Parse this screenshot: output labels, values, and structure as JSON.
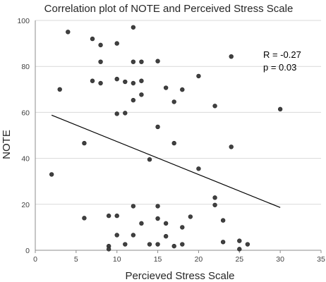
{
  "chart_data": {
    "type": "scatter",
    "title": "Correlation plot of NOTE and Perceived Stress Scale",
    "xlabel": "Percieved Stress Scale",
    "ylabel": "NOTE",
    "xlim": [
      0,
      35
    ],
    "ylim": [
      0,
      100
    ],
    "xticks": [
      "0",
      "5",
      "10",
      "15",
      "20",
      "25",
      "30",
      "35"
    ],
    "yticks": [
      "0",
      "20",
      "40",
      "60",
      "80",
      "100"
    ],
    "grid": "horizontal",
    "annotations": [
      "R = -0.27",
      "p = 0.03"
    ],
    "point_color": "#404040",
    "trendline": {
      "x": [
        2,
        30
      ],
      "y": [
        58.8,
        18.6
      ]
    },
    "points": [
      {
        "x": 2,
        "y": 33
      },
      {
        "x": 3,
        "y": 70
      },
      {
        "x": 4,
        "y": 95
      },
      {
        "x": 6,
        "y": 46.6
      },
      {
        "x": 6,
        "y": 14
      },
      {
        "x": 7,
        "y": 92
      },
      {
        "x": 7,
        "y": 73.7
      },
      {
        "x": 8,
        "y": 89.3
      },
      {
        "x": 8,
        "y": 82
      },
      {
        "x": 8,
        "y": 72.7
      },
      {
        "x": 9,
        "y": 15
      },
      {
        "x": 9,
        "y": 1.8
      },
      {
        "x": 9,
        "y": 0.5
      },
      {
        "x": 10,
        "y": 90
      },
      {
        "x": 10,
        "y": 74.5
      },
      {
        "x": 10,
        "y": 59.4
      },
      {
        "x": 10,
        "y": 15
      },
      {
        "x": 10,
        "y": 6.6
      },
      {
        "x": 11,
        "y": 73.3
      },
      {
        "x": 11,
        "y": 59.7
      },
      {
        "x": 11,
        "y": 2.6
      },
      {
        "x": 12,
        "y": 97
      },
      {
        "x": 12,
        "y": 82
      },
      {
        "x": 12,
        "y": 72.7
      },
      {
        "x": 12,
        "y": 65.3
      },
      {
        "x": 12,
        "y": 19.2
      },
      {
        "x": 12,
        "y": 6.6
      },
      {
        "x": 13,
        "y": 82
      },
      {
        "x": 13,
        "y": 73.7
      },
      {
        "x": 13,
        "y": 67.7
      },
      {
        "x": 13,
        "y": 11.7
      },
      {
        "x": 14,
        "y": 39.5
      },
      {
        "x": 14,
        "y": 2.6
      },
      {
        "x": 15,
        "y": 82.3
      },
      {
        "x": 15,
        "y": 53.7
      },
      {
        "x": 15,
        "y": 19.2
      },
      {
        "x": 15,
        "y": 13.8
      },
      {
        "x": 15,
        "y": 2.6
      },
      {
        "x": 16,
        "y": 70.7
      },
      {
        "x": 16,
        "y": 11.7
      },
      {
        "x": 16,
        "y": 6.1
      },
      {
        "x": 17,
        "y": 64.6
      },
      {
        "x": 17,
        "y": 46.6
      },
      {
        "x": 17,
        "y": 1.8
      },
      {
        "x": 18,
        "y": 69.9
      },
      {
        "x": 18,
        "y": 10
      },
      {
        "x": 18,
        "y": 2.6
      },
      {
        "x": 19,
        "y": 14.6
      },
      {
        "x": 20,
        "y": 75.8
      },
      {
        "x": 20,
        "y": 35.5
      },
      {
        "x": 22,
        "y": 62.8
      },
      {
        "x": 22,
        "y": 22.9
      },
      {
        "x": 22,
        "y": 19.7
      },
      {
        "x": 23,
        "y": 13
      },
      {
        "x": 23,
        "y": 3.6
      },
      {
        "x": 24,
        "y": 84.3
      },
      {
        "x": 24,
        "y": 45
      },
      {
        "x": 25,
        "y": 4.1
      },
      {
        "x": 25,
        "y": 0.5
      },
      {
        "x": 26,
        "y": 2.6
      },
      {
        "x": 30,
        "y": 61.4
      }
    ]
  }
}
